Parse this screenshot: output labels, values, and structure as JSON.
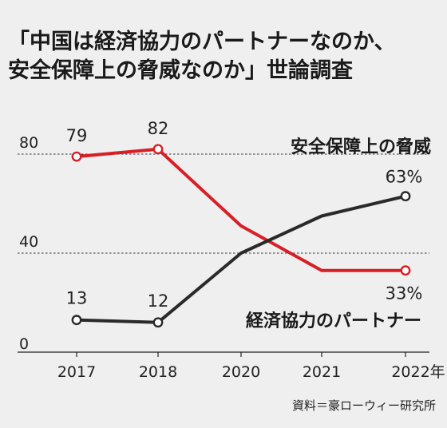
{
  "title_lines": [
    "「中国は経済協力のパートナーなのか、",
    "安全保障上の脅威なのか」世論調査"
  ],
  "source": "資料＝豪ローウィー研究所",
  "chart_data": {
    "type": "line",
    "title": "「中国は経済協力のパートナーなのか、安全保障上の脅威なのか」世論調査",
    "x": [
      "2017",
      "2018",
      "2020",
      "2021",
      "2022"
    ],
    "x_tick_labels": [
      "2017",
      "2018",
      "2020",
      "2021",
      "2022年"
    ],
    "ylim": [
      0,
      100
    ],
    "y_ticks": [
      0,
      40,
      80
    ],
    "grid": {
      "dashed_at": [
        40,
        80
      ]
    },
    "series": [
      {
        "name": "安全保障上の脅威",
        "color": "#d81f26",
        "values": [
          79,
          82,
          51,
          33,
          33
        ],
        "markers": [
          true,
          true,
          false,
          false,
          true
        ],
        "labels": [
          "79",
          "82",
          null,
          null,
          "33%"
        ]
      },
      {
        "name": "経済協力のパートナー",
        "color": "#2a2a2a",
        "values": [
          13,
          12,
          40,
          55,
          63
        ],
        "markers": [
          true,
          true,
          false,
          false,
          true
        ],
        "labels": [
          "13",
          "12",
          null,
          null,
          "63%"
        ]
      }
    ]
  }
}
